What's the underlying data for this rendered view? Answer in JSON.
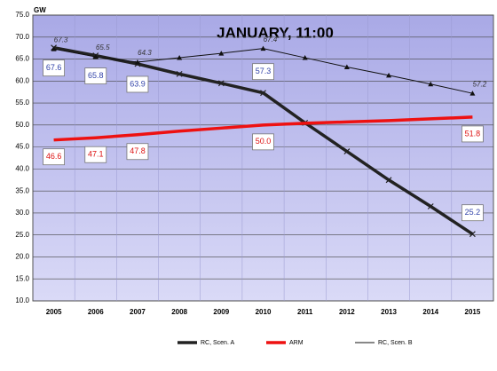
{
  "chart_data": {
    "type": "line",
    "title": "JANUARY, 11:00",
    "y_label": "GW",
    "categories": [
      "2005",
      "2006",
      "2007",
      "2008",
      "2009",
      "2010",
      "2011",
      "2012",
      "2013",
      "2014",
      "2015"
    ],
    "series": [
      {
        "name": "RC, Scen. A",
        "color": "#222222",
        "marker": "cross",
        "values": [
          67.6,
          65.8,
          63.9,
          61.6,
          59.5,
          57.3,
          50.5,
          44.0,
          37.5,
          31.5,
          25.2
        ],
        "value_labels": [
          "67.6",
          "65.8",
          "63.9",
          null,
          null,
          "57.3",
          null,
          null,
          null,
          null,
          "25.2"
        ]
      },
      {
        "name": "ARM",
        "color": "#ee1111",
        "marker": "none",
        "values": [
          46.6,
          47.1,
          47.8,
          48.6,
          49.3,
          50.0,
          50.4,
          50.7,
          51.0,
          51.4,
          51.8
        ],
        "value_labels": [
          "46.6",
          "47.1",
          "47.8",
          null,
          null,
          "50.0",
          null,
          null,
          null,
          null,
          "51.8"
        ]
      },
      {
        "name": "RC, Scen. B",
        "color": "#111111",
        "marker": "triangle",
        "values": [
          67.3,
          65.5,
          64.3,
          65.3,
          66.3,
          67.4,
          65.3,
          63.2,
          61.3,
          59.3,
          57.2
        ],
        "value_labels": [
          "67.3",
          "65.5",
          "64.3",
          null,
          null,
          "67.4",
          null,
          null,
          null,
          null,
          "57.2"
        ]
      }
    ],
    "ylim": [
      10,
      75
    ],
    "yticks": [
      {
        "value": 10,
        "label": "10.0"
      },
      {
        "value": 15,
        "label": "15.0"
      },
      {
        "value": 20,
        "label": "20.0"
      },
      {
        "value": 25,
        "label": "25.0"
      },
      {
        "value": 30,
        "label": "30.0"
      },
      {
        "value": 35,
        "label": "35.0"
      },
      {
        "value": 40,
        "label": "40.0"
      },
      {
        "value": 45,
        "label": "45.0"
      },
      {
        "value": 50,
        "label": "50.0"
      },
      {
        "value": 55,
        "label": "55.0"
      },
      {
        "value": 60,
        "label": "60.0"
      },
      {
        "value": 65,
        "label": "65.0"
      },
      {
        "value": 70,
        "label": "70.0"
      },
      {
        "value": 75,
        "label": "75.0"
      }
    ],
    "grid": true,
    "legend": "bottom"
  }
}
